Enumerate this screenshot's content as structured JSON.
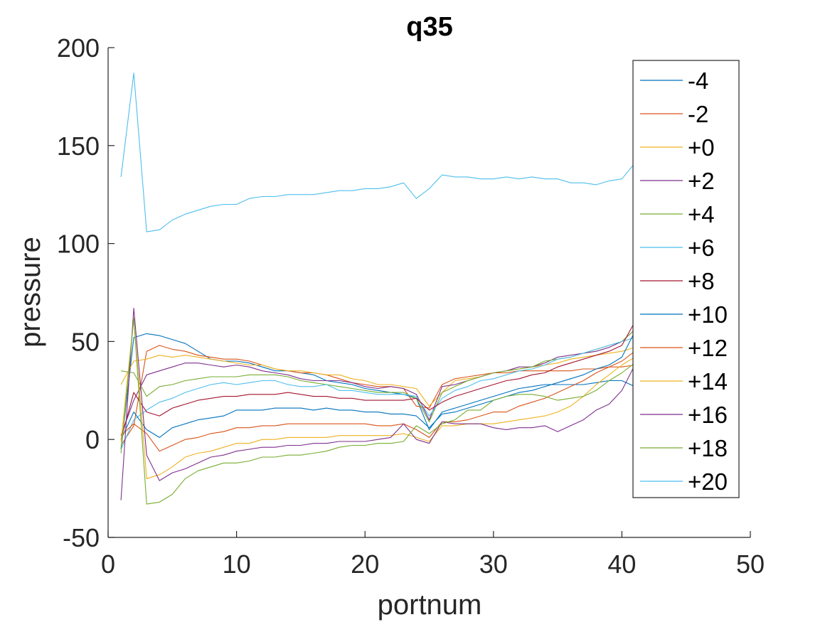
{
  "chart_data": {
    "type": "line",
    "title": "q35",
    "xlabel": "portnum",
    "ylabel": "pressure",
    "xlim": [
      0,
      50
    ],
    "ylim": [
      -50,
      200
    ],
    "xticks": [
      "0",
      "10",
      "20",
      "30",
      "40",
      "50"
    ],
    "yticks": [
      "-50",
      "0",
      "50",
      "100",
      "150",
      "200"
    ],
    "grid": false,
    "legend_position": "right",
    "x": [
      1,
      2,
      3,
      4,
      5,
      6,
      7,
      8,
      9,
      10,
      11,
      12,
      13,
      14,
      15,
      16,
      17,
      18,
      19,
      20,
      21,
      22,
      23,
      24,
      25,
      26,
      27,
      28,
      29,
      30,
      31,
      32,
      33,
      34,
      35,
      36,
      37,
      38,
      39,
      40,
      41
    ],
    "series": [
      {
        "name": "-4",
        "color": "#0072BD",
        "values": [
          -5,
          52,
          54,
          53,
          51,
          49,
          45,
          41,
          40,
          40,
          39,
          37,
          35,
          35,
          34,
          33,
          30,
          29,
          28,
          26,
          25,
          24,
          23,
          21,
          5,
          14,
          16,
          18,
          20,
          22,
          24,
          26,
          27,
          28,
          28,
          28,
          28,
          29,
          30,
          30,
          27
        ]
      },
      {
        "name": "-2",
        "color": "#D95319",
        "values": [
          -3,
          7,
          45,
          48,
          46,
          45,
          43,
          42,
          41,
          41,
          40,
          38,
          36,
          35,
          34,
          34,
          33,
          31,
          29,
          28,
          27,
          27,
          26,
          17,
          16,
          28,
          31,
          32,
          33,
          34,
          34,
          35,
          35,
          35,
          35,
          35,
          36,
          36,
          37,
          37,
          38
        ]
      },
      {
        "name": "+0",
        "color": "#EDB120",
        "values": [
          28,
          40,
          41,
          43,
          42,
          43,
          42,
          41,
          40,
          39,
          38,
          38,
          36,
          35,
          35,
          34,
          33,
          33,
          31,
          30,
          28,
          28,
          27,
          26,
          17,
          24,
          30,
          31,
          32,
          34,
          35,
          36,
          37,
          38,
          39,
          41,
          42,
          43,
          44,
          45,
          47
        ]
      },
      {
        "name": "+2",
        "color": "#7E2F8E",
        "values": [
          2,
          20,
          33,
          35,
          37,
          39,
          39,
          38,
          37,
          38,
          37,
          35,
          34,
          33,
          31,
          30,
          30,
          30,
          29,
          27,
          26,
          27,
          26,
          23,
          10,
          27,
          28,
          30,
          32,
          34,
          35,
          37,
          37,
          39,
          42,
          43,
          44,
          45,
          47,
          50,
          56
        ]
      },
      {
        "name": "+4",
        "color": "#77AC30",
        "values": [
          35,
          34,
          22,
          27,
          28,
          30,
          31,
          32,
          32,
          32,
          33,
          33,
          33,
          32,
          30,
          29,
          28,
          27,
          26,
          25,
          24,
          24,
          24,
          21,
          9,
          24,
          27,
          30,
          32,
          34,
          35,
          36,
          37,
          40,
          41,
          42,
          44,
          46,
          48,
          50,
          56
        ]
      },
      {
        "name": "+6",
        "color": "#4DBEEE",
        "values": [
          -5,
          10,
          15,
          19,
          21,
          24,
          26,
          28,
          29,
          28,
          29,
          30,
          30,
          28,
          27,
          27,
          28,
          25,
          25,
          24,
          23,
          23,
          23,
          22,
          12,
          21,
          25,
          27,
          30,
          31,
          33,
          35,
          36,
          38,
          41,
          42,
          44,
          46,
          48,
          50,
          52
        ]
      },
      {
        "name": "+8",
        "color": "#A2142F",
        "values": [
          0,
          24,
          14,
          12,
          16,
          18,
          20,
          21,
          22,
          22,
          23,
          23,
          23,
          24,
          23,
          22,
          22,
          21,
          21,
          20,
          20,
          20,
          20,
          21,
          15,
          19,
          22,
          24,
          26,
          28,
          30,
          31,
          33,
          34,
          37,
          39,
          41,
          43,
          45,
          48,
          60
        ]
      },
      {
        "name": "+10",
        "color": "#0072BD",
        "values": [
          0,
          14,
          5,
          1,
          6,
          8,
          10,
          11,
          12,
          15,
          15,
          15,
          16,
          16,
          16,
          15,
          16,
          15,
          15,
          14,
          14,
          13,
          13,
          12,
          6,
          13,
          14,
          16,
          18,
          20,
          22,
          24,
          25,
          27,
          29,
          31,
          33,
          36,
          38,
          42,
          55
        ]
      },
      {
        "name": "+12",
        "color": "#D95319",
        "values": [
          2,
          8,
          3,
          -6,
          -3,
          0,
          1,
          3,
          4,
          6,
          6,
          7,
          7,
          8,
          8,
          8,
          8,
          8,
          8,
          8,
          7,
          7,
          8,
          5,
          1,
          9,
          9,
          10,
          12,
          14,
          14,
          17,
          19,
          21,
          24,
          27,
          30,
          34,
          37,
          40,
          45
        ]
      },
      {
        "name": "+14",
        "color": "#EDB120",
        "values": [
          -1,
          62,
          -20,
          -18,
          -14,
          -9,
          -7,
          -6,
          -4,
          -2,
          -2,
          0,
          0,
          1,
          1,
          1,
          1,
          2,
          2,
          2,
          2,
          2,
          3,
          1,
          -1,
          7,
          7,
          8,
          8,
          8,
          9,
          10,
          11,
          12,
          14,
          17,
          22,
          28,
          33,
          38,
          42
        ]
      },
      {
        "name": "+16",
        "color": "#7E2F8E",
        "values": [
          -31,
          67,
          -8,
          -21,
          -17,
          -15,
          -12,
          -9,
          -8,
          -6,
          -5,
          -4,
          -4,
          -3,
          -3,
          -2,
          -2,
          -1,
          -1,
          -1,
          0,
          1,
          8,
          0,
          -2,
          9,
          8,
          8,
          8,
          6,
          5,
          6,
          6,
          7,
          4,
          7,
          10,
          15,
          18,
          25,
          38
        ]
      },
      {
        "name": "+18",
        "color": "#77AC30",
        "values": [
          -7,
          62,
          -33,
          -32,
          -28,
          -20,
          -16,
          -14,
          -12,
          -12,
          -11,
          -9,
          -9,
          -8,
          -8,
          -7,
          -6,
          -4,
          -3,
          -3,
          -2,
          -2,
          -1,
          7,
          3,
          8,
          10,
          15,
          15,
          20,
          22,
          23,
          23,
          22,
          20,
          21,
          22,
          25,
          30,
          34,
          39
        ]
      },
      {
        "name": "+20",
        "color": "#4DBEEE",
        "values": [
          134,
          187,
          106,
          107,
          112,
          115,
          117,
          119,
          120,
          120,
          123,
          124,
          124,
          125,
          125,
          125,
          126,
          127,
          127,
          128,
          128,
          129,
          131,
          123,
          128,
          135,
          134,
          134,
          133,
          133,
          134,
          133,
          134,
          133,
          133,
          131,
          131,
          130,
          132,
          133,
          141
        ]
      }
    ]
  }
}
